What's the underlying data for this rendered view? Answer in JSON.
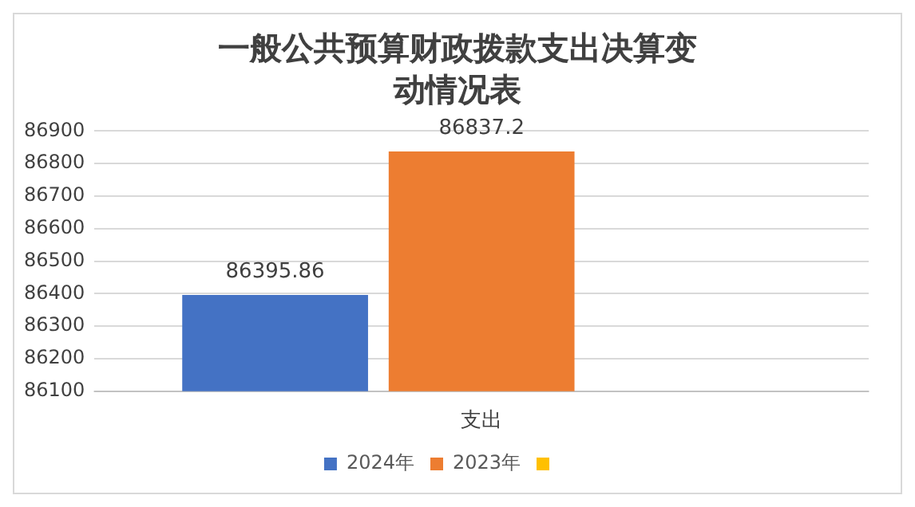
{
  "chart_data": {
    "type": "bar",
    "title": "一般公共预算财政拨款支出决算变动情况表",
    "categories": [
      "支出"
    ],
    "series": [
      {
        "name": "2024年",
        "color": "#4472c4",
        "values": [
          86395.86
        ]
      },
      {
        "name": "2023年",
        "color": "#ed7d31",
        "values": [
          86837.2
        ]
      },
      {
        "color": "#ffc000",
        "values": [
          null
        ]
      }
    ],
    "ylim": [
      86100,
      86900
    ],
    "yticks": [
      86100,
      86200,
      86300,
      86400,
      86500,
      86600,
      86700,
      86800,
      86900
    ],
    "grid": "y",
    "legend": "bottom",
    "data_labels": true
  }
}
